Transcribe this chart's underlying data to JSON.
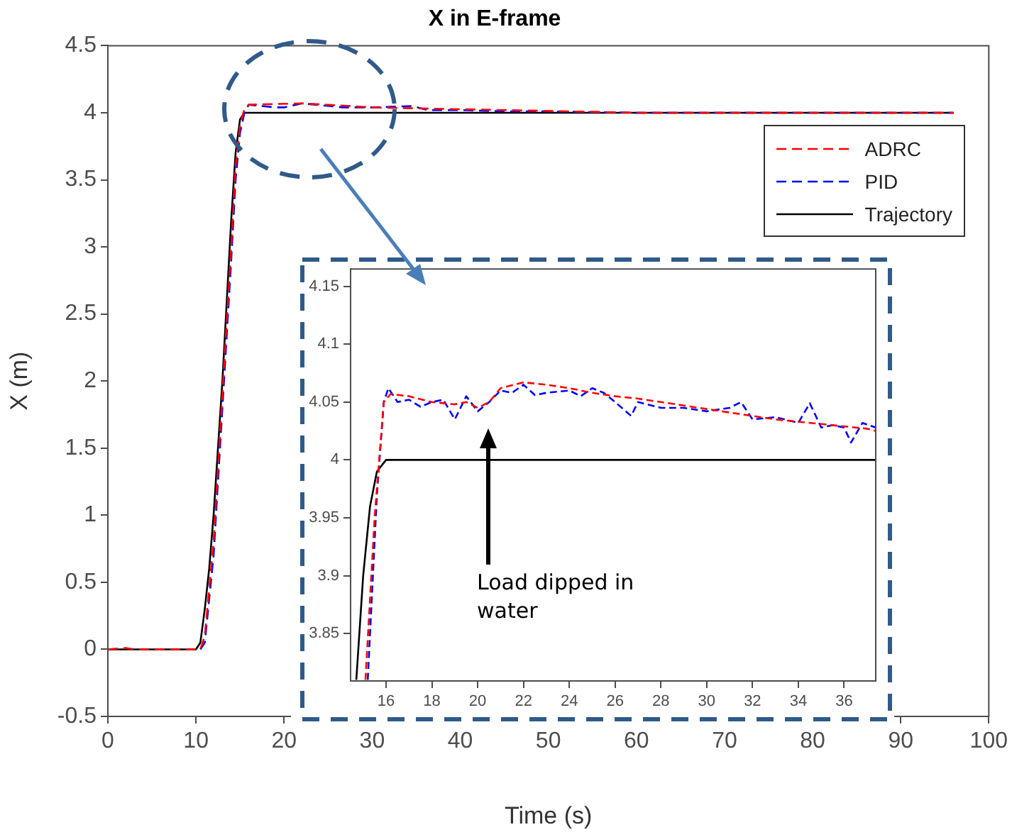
{
  "chart_data": [
    {
      "type": "line",
      "title": "X in E-frame",
      "xlabel": "Time (s)",
      "ylabel": "X (m)",
      "xlim": [
        0,
        100
      ],
      "ylim": [
        -0.5,
        4.5
      ],
      "xticks": [
        0,
        10,
        20,
        30,
        40,
        50,
        60,
        70,
        80,
        90,
        100
      ],
      "yticks": [
        -0.5,
        0,
        0.5,
        1,
        1.5,
        2,
        2.5,
        3,
        3.5,
        4,
        4.5
      ],
      "legend": "top right",
      "series": [
        {
          "name": "ADRC",
          "color": "#ff0000",
          "line_style": "dashed",
          "x": [
            0,
            2,
            3,
            10.5,
            11,
            12,
            13,
            14,
            14.5,
            15,
            15.5,
            16,
            22,
            30,
            37,
            45,
            60,
            96
          ],
          "values": [
            0,
            0.01,
            0,
            0,
            0.1,
            0.8,
            1.9,
            3.0,
            3.6,
            3.9,
            4.03,
            4.06,
            4.07,
            4.04,
            4.03,
            4.02,
            4.0,
            4.0
          ]
        },
        {
          "name": "PID",
          "color": "#0000ff",
          "line_style": "dashed",
          "x": [
            10.5,
            11,
            12,
            13,
            14,
            14.5,
            15,
            15.5,
            16,
            19,
            20,
            22,
            26.7,
            30,
            34.5,
            36.3,
            40,
            45,
            50,
            60,
            96
          ],
          "values": [
            0,
            0.05,
            0.7,
            1.8,
            2.9,
            3.5,
            3.85,
            4.0,
            4.06,
            4.04,
            4.04,
            4.07,
            4.04,
            4.04,
            4.05,
            4.02,
            4.02,
            4.01,
            4.01,
            4.0,
            4.0
          ]
        },
        {
          "name": "Trajectory",
          "color": "#000000",
          "line_style": "solid",
          "x": [
            0,
            10,
            10.5,
            11,
            11.5,
            12,
            12.5,
            13,
            13.5,
            14,
            14.5,
            15,
            15.5,
            96
          ],
          "values": [
            0,
            0,
            0.05,
            0.3,
            0.6,
            1.0,
            1.5,
            2.0,
            2.6,
            3.2,
            3.7,
            3.95,
            4.0,
            4.0
          ]
        }
      ]
    },
    {
      "type": "line",
      "xlim": [
        14.45,
        37.38
      ],
      "ylim": [
        3.809,
        4.165
      ],
      "xticks": [
        16,
        18,
        20,
        22,
        24,
        26,
        28,
        30,
        32,
        34,
        36
      ],
      "yticks": [
        3.85,
        3.9,
        3.95,
        4,
        4.05,
        4.1,
        4.15
      ],
      "annotations": [
        "Load dipped in water"
      ],
      "series": [
        {
          "color": "#ff0000",
          "line_style": "dashed",
          "x": [
            15.1,
            15.5,
            15.9,
            16.2,
            17,
            18,
            19,
            19.5,
            20,
            20.5,
            21,
            22,
            23,
            24,
            25,
            26,
            27,
            28,
            29,
            30,
            31,
            32,
            33,
            34,
            35,
            36,
            37,
            37.38
          ],
          "values": [
            3.81,
            3.95,
            4.05,
            4.057,
            4.055,
            4.05,
            4.048,
            4.05,
            4.045,
            4.05,
            4.062,
            4.067,
            4.065,
            4.062,
            4.058,
            4.055,
            4.053,
            4.05,
            4.047,
            4.044,
            4.041,
            4.038,
            4.035,
            4.033,
            4.031,
            4.029,
            4.027,
            4.025
          ]
        },
        {
          "color": "#0000ff",
          "line_style": "dashed",
          "x": [
            15.2,
            15.6,
            15.9,
            16.1,
            16.5,
            17,
            17.5,
            18,
            18.5,
            19,
            19.5,
            20,
            20.5,
            21,
            21.5,
            22,
            22.5,
            23,
            24,
            24.5,
            25,
            25.5,
            26,
            26.7,
            27,
            28,
            29,
            30,
            31,
            31.5,
            32,
            33,
            34,
            34.5,
            35,
            35.5,
            36,
            36.3,
            36.8,
            37.38
          ],
          "values": [
            3.81,
            3.97,
            4.05,
            4.062,
            4.05,
            4.052,
            4.046,
            4.05,
            4.052,
            4.035,
            4.055,
            4.042,
            4.05,
            4.06,
            4.058,
            4.065,
            4.056,
            4.058,
            4.06,
            4.055,
            4.062,
            4.058,
            4.05,
            4.038,
            4.05,
            4.045,
            4.045,
            4.042,
            4.045,
            4.05,
            4.035,
            4.037,
            4.032,
            4.049,
            4.028,
            4.03,
            4.028,
            4.015,
            4.032,
            4.028
          ]
        },
        {
          "color": "#000000",
          "line_style": "solid",
          "x": [
            14.7,
            15,
            15.3,
            15.6,
            16,
            37.38
          ],
          "values": [
            3.81,
            3.9,
            3.96,
            3.99,
            4.0,
            4.0
          ]
        }
      ]
    }
  ]
}
